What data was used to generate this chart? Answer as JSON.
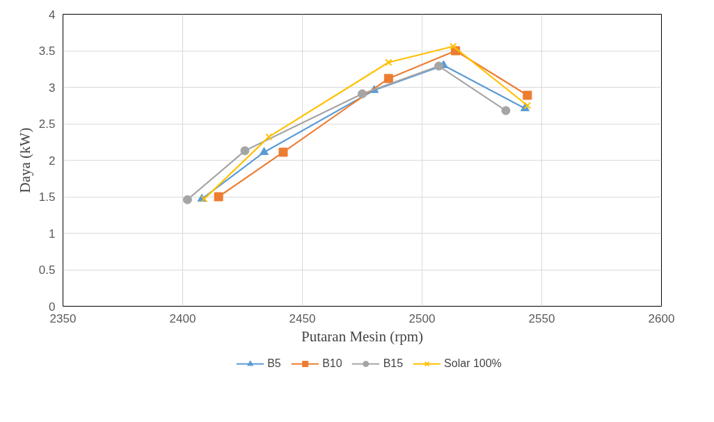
{
  "chart_data": {
    "type": "line",
    "xlabel": "Putaran Mesin (rpm)",
    "ylabel": "Daya (kW)",
    "xlim": [
      2350,
      2600
    ],
    "xticks": [
      2350,
      2400,
      2450,
      2500,
      2550,
      2600
    ],
    "ylim": [
      0,
      4
    ],
    "yticks": [
      0,
      0.5,
      1,
      1.5,
      2,
      2.5,
      3,
      3.5,
      4
    ],
    "grid": true,
    "legend": "bottom",
    "series": [
      {
        "name": "B5",
        "color": "#5b9bd5",
        "marker": "triangle",
        "x": [
          2408,
          2434,
          2480,
          2509,
          2543
        ],
        "values": [
          1.47,
          2.11,
          2.96,
          3.3,
          2.71
        ]
      },
      {
        "name": "B10",
        "color": "#ed7d31",
        "marker": "square",
        "x": [
          2415,
          2442,
          2486,
          2514,
          2544
        ],
        "values": [
          1.5,
          2.11,
          3.12,
          3.5,
          2.89
        ]
      },
      {
        "name": "B15",
        "color": "#a5a5a5",
        "marker": "circle",
        "x": [
          2402,
          2426,
          2475,
          2507,
          2535
        ],
        "values": [
          1.46,
          2.13,
          2.91,
          3.29,
          2.68
        ]
      },
      {
        "name": "Solar 100%",
        "color": "#ffc000",
        "marker": "cross",
        "x": [
          2409,
          2436,
          2486,
          2513,
          2544
        ],
        "values": [
          1.47,
          2.32,
          3.34,
          3.56,
          2.75
        ]
      }
    ]
  }
}
